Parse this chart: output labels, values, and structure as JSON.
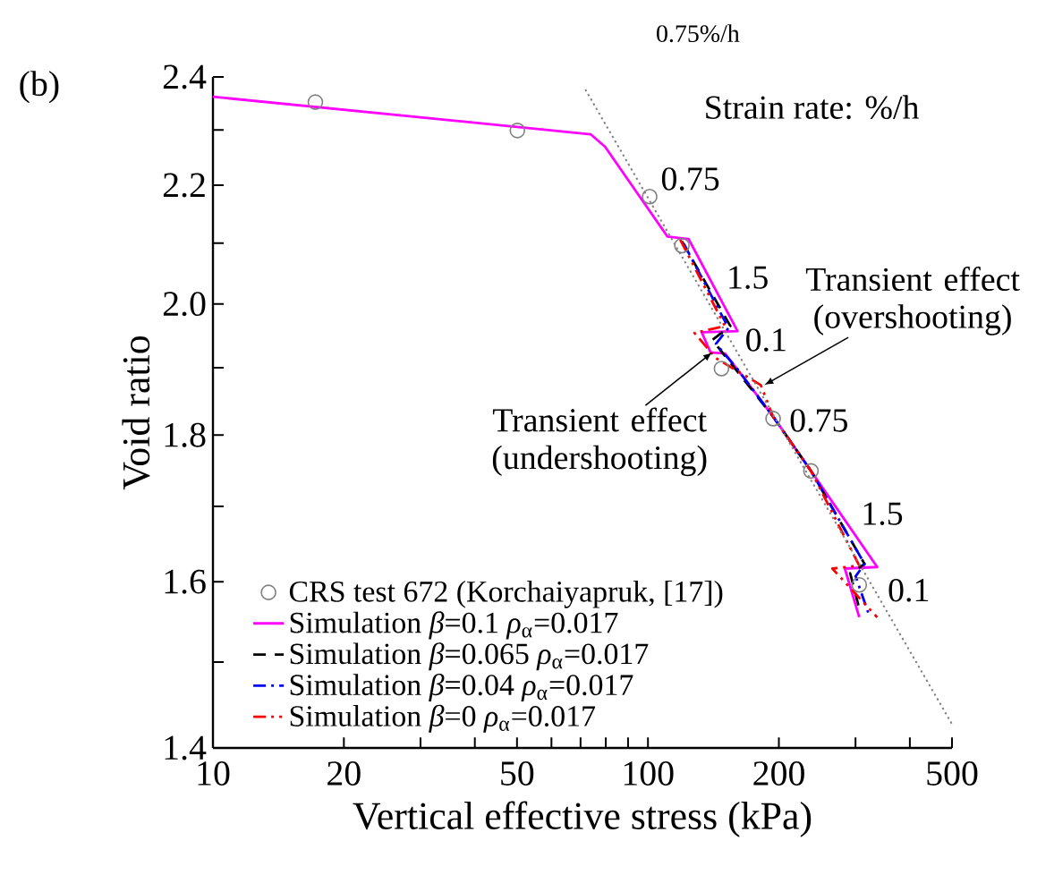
{
  "chart_data": {
    "type": "line",
    "title": "(b)",
    "xlabel": "Vertical effective stress (kPa)",
    "ylabel": "Void ratio",
    "log": "xy",
    "xlim": [
      10,
      500
    ],
    "ylim": [
      1.4,
      2.4
    ],
    "xticks": [
      10,
      20,
      {
        "value": 30,
        "label": null
      },
      {
        "value": 40,
        "label": null
      },
      50,
      {
        "value": 60,
        "label": null
      },
      {
        "value": 70,
        "label": null
      },
      {
        "value": 80,
        "label": null
      },
      {
        "value": 90,
        "label": null
      },
      100,
      200,
      {
        "value": 300,
        "label": null
      },
      {
        "value": 400,
        "label": null
      },
      500
    ],
    "yticks": [
      1.4,
      {
        "value": 1.5,
        "label": null
      },
      1.6,
      {
        "value": 1.7,
        "label": null
      },
      1.8,
      {
        "value": 1.9,
        "label": null
      },
      {
        "value": 2,
        "label": "2.0"
      },
      {
        "value": 2.1,
        "label": null
      },
      2.2,
      {
        "value": 2.3,
        "label": null
      },
      2.4
    ],
    "grid": false,
    "legend": "bottom left",
    "series": [
      {
        "type": "scatter",
        "name": "CRS test 672 (Korchaiyapruk, [17])",
        "color": "#808080",
        "marker": "circle",
        "x": [
          17.2,
          50.1,
          100.9,
          119.7,
          147.6,
          194,
          237,
          306
        ],
        "values": [
          2.352,
          2.299,
          2.18,
          2.096,
          1.899,
          1.824,
          1.749,
          1.596
        ]
      },
      {
        "name": "Simulation *β*=0.1 *ρ*$_{α}$=0.017",
        "color": "#ff00ff",
        "line_style": "solid",
        "x": [
          10,
          73.8,
          79.7,
          110.9,
          124,
          160.7,
          132.9,
          139.3,
          150.3,
          168.3,
          194,
          237,
          336.5,
          283.6,
          306
        ],
        "values": [
          2.362,
          2.292,
          2.269,
          2.111,
          2.107,
          1.957,
          1.955,
          1.924,
          1.922,
          1.88,
          1.827,
          1.749,
          1.619,
          1.617,
          1.555
        ]
      },
      {
        "name": "Simulation *β*=0.065 *ρ*$_{α}$=0.017",
        "color": "#000000",
        "line_style": "dashed",
        "x": [
          119.7,
          154.7,
          140.6,
          157.6,
          194,
          237,
          314.8,
          291.7,
          306
        ],
        "values": [
          2.103,
          1.965,
          1.943,
          1.901,
          1.827,
          1.749,
          1.623,
          1.611,
          1.566
        ]
      },
      {
        "name": "Simulation *β*=0.04 *ρ*$_{α}$=0.017",
        "color": "#0000ff",
        "line_style": "dashdotted",
        "x": [
          120.9,
          153.2,
          143.3,
          160.7,
          194,
          237,
          314.8,
          300.2,
          320.8
        ],
        "values": [
          2.099,
          1.962,
          1.937,
          1.898,
          1.827,
          1.749,
          1.623,
          1.607,
          1.561
        ]
      },
      {
        "name": "Simulation *β*=0 *ρ*$_{α}$=0.017",
        "color": "#ff0000",
        "line_style": "dashdotdotted",
        "x": [
          118.6,
          150.3,
          127.9,
          143.3,
          181.7,
          194,
          237,
          306,
          265.4,
          336.5
        ],
        "values": [
          2.106,
          1.965,
          1.954,
          1.915,
          1.874,
          1.827,
          1.749,
          1.621,
          1.617,
          1.555
        ]
      },
      {
        "color": "#808080",
        "line_style": "dotted",
        "x": [
          71.8,
          500
        ],
        "values": [
          2.376,
          1.427
        ]
      }
    ],
    "annotations": [
      "Strain rate: %/h",
      "0.75%/h",
      "0.75",
      "1.5",
      "0.1",
      "0.75",
      "1.5",
      "0.1",
      {
        "text": "Transient effect (overshooting)",
        "x": 185,
        "y": 1.874
      },
      {
        "text": "Transient effect (undershooting)",
        "x": 140.6,
        "y": 1.924
      }
    ]
  }
}
